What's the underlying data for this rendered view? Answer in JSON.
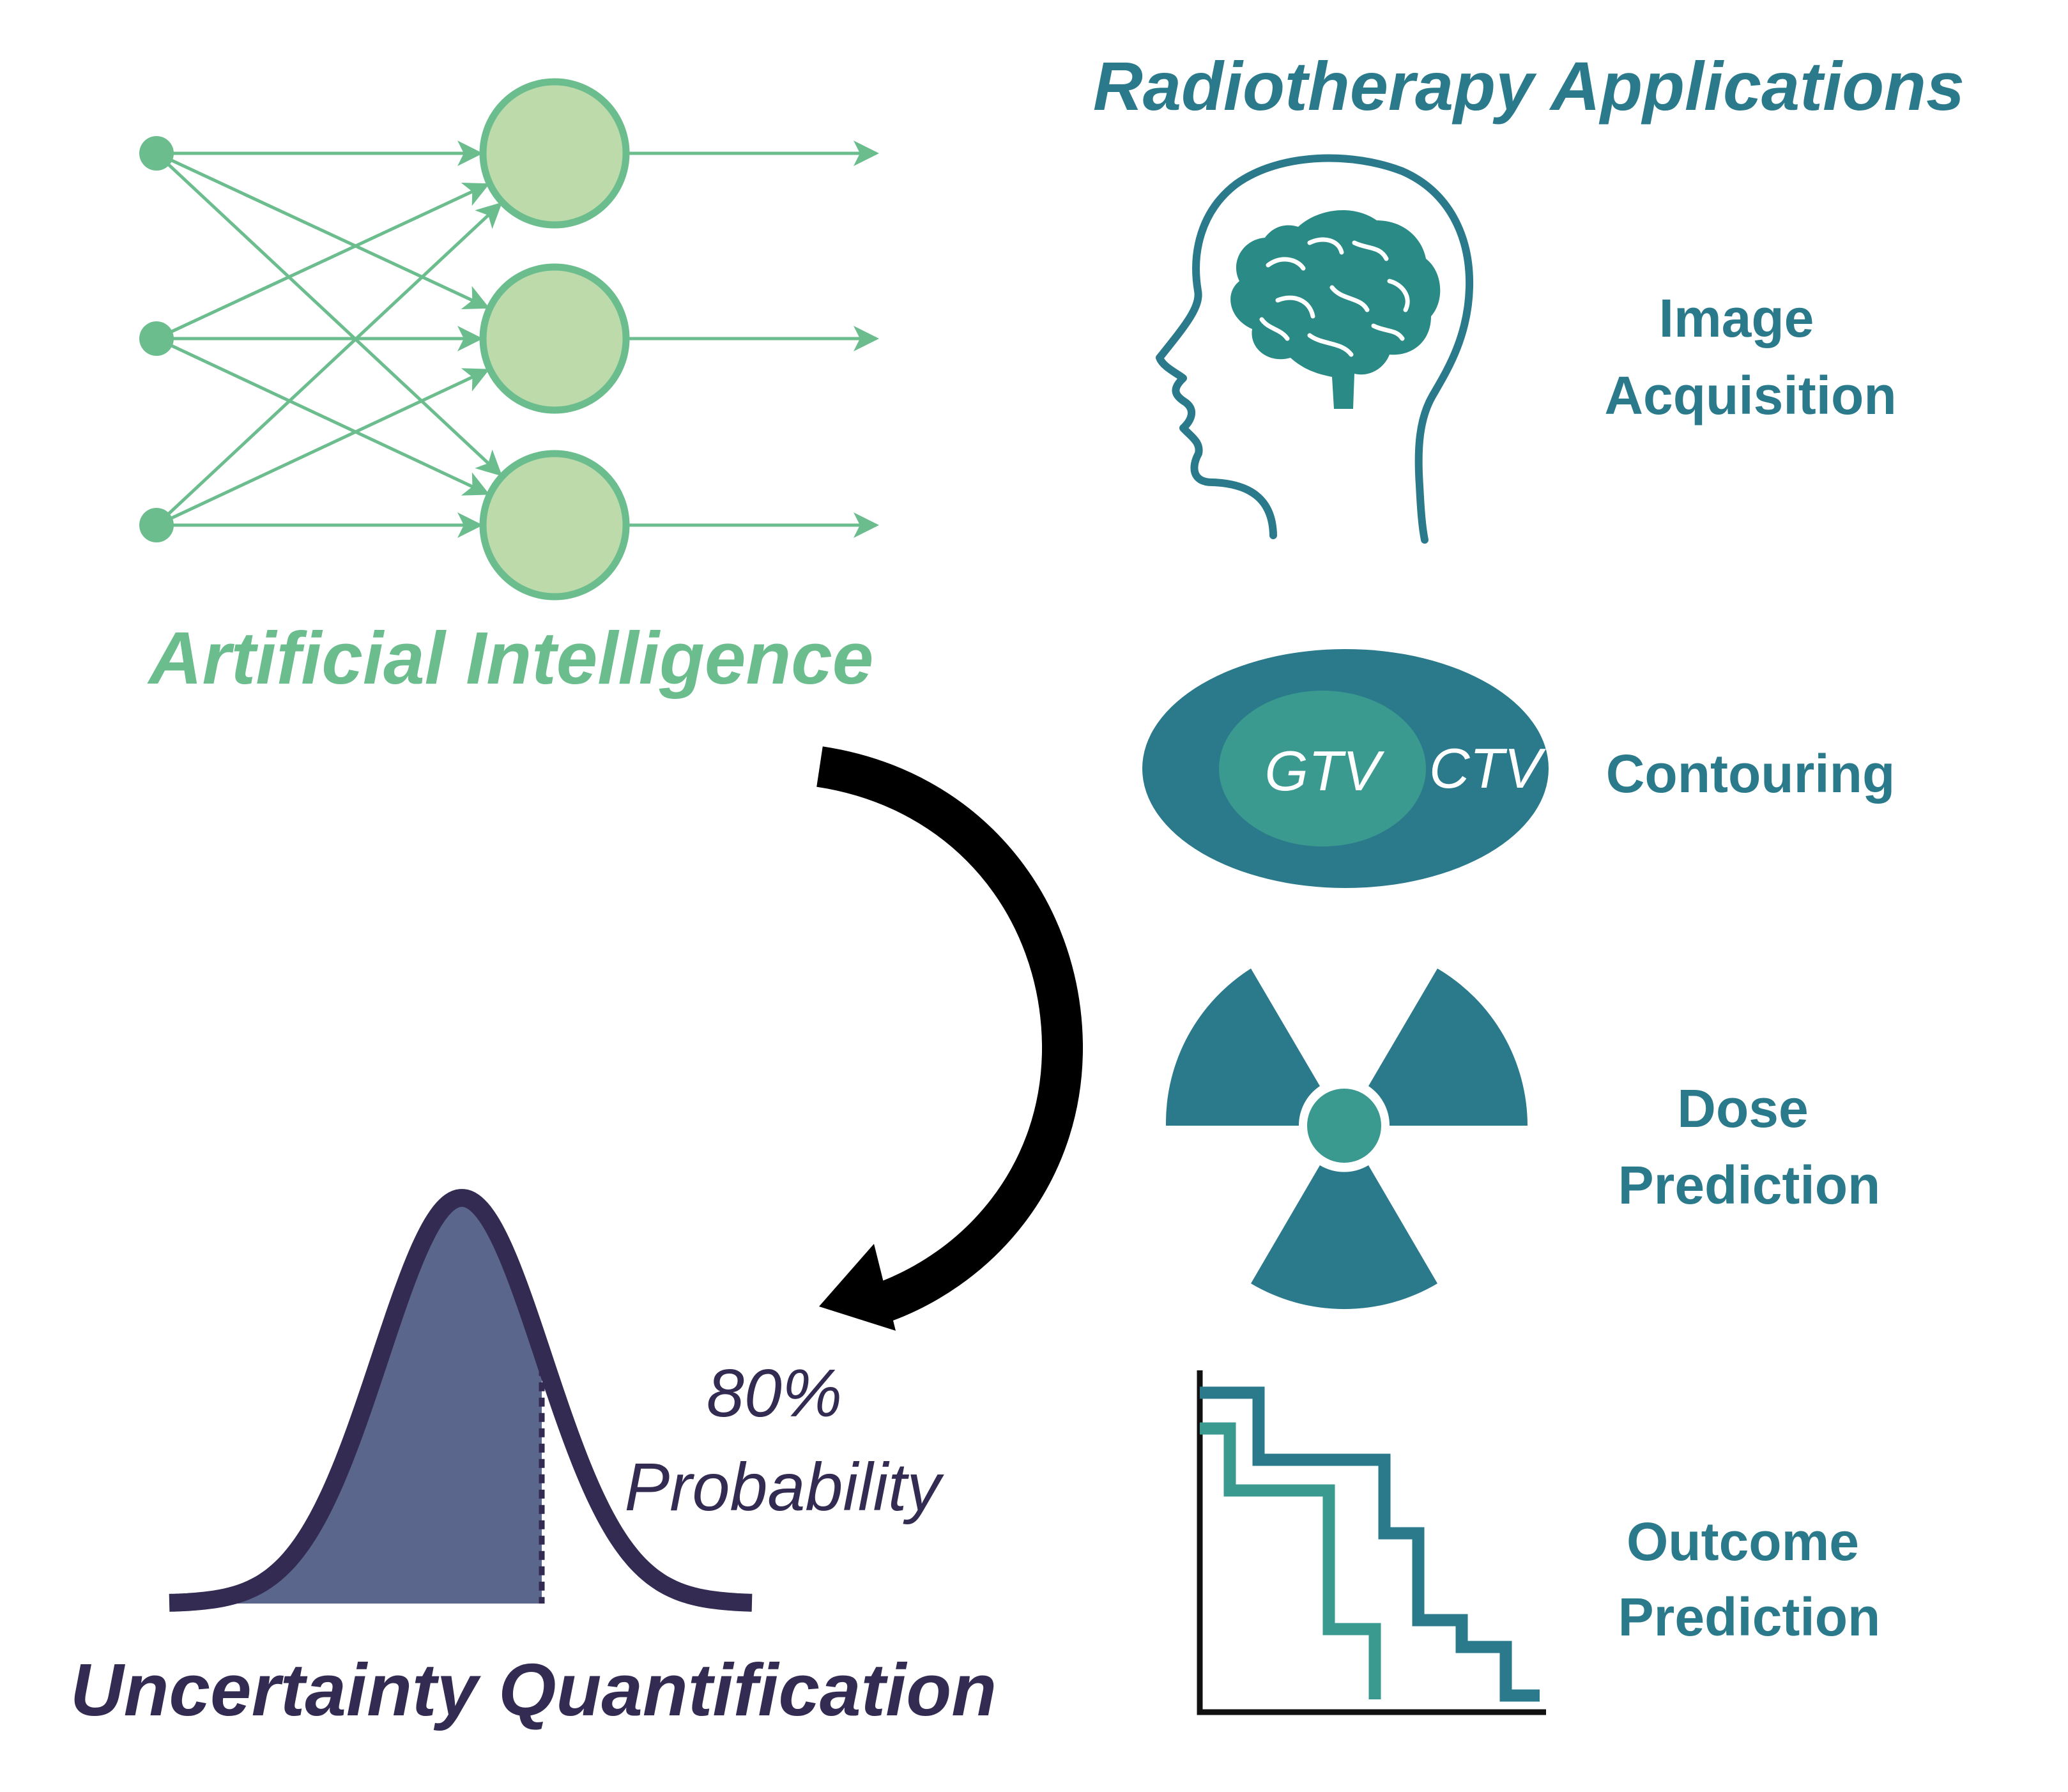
{
  "colors": {
    "ai_green": "#6bbd8e",
    "ai_node_fill": "#bcdaaa",
    "teal_dark": "#2a7a8c",
    "teal_mid": "#3a9a8f",
    "navy": "#332b52",
    "bell_fill": "#5a668b",
    "arrow_black": "#000000",
    "white": "#ffffff"
  },
  "artificial_intelligence": {
    "title": "Artificial Intelligence"
  },
  "radiotherapy": {
    "title": "Radiotherapy Applications",
    "image_acquisition": {
      "line1": "Image",
      "line2": "Acquisition",
      "icon": "head-brain-icon"
    },
    "contouring": {
      "label": "Contouring",
      "gtv": "GTV",
      "ctv": "CTV",
      "icon": "contour-ellipse-icon"
    },
    "dose_prediction": {
      "line1": "Dose",
      "line2": "Prediction",
      "icon": "radiation-trefoil-icon"
    },
    "outcome_prediction": {
      "line1": "Outcome",
      "line2": "Prediction",
      "icon": "survival-curve-icon"
    }
  },
  "uncertainty": {
    "title": "Uncertainty Quantification",
    "probability_value": "80%",
    "probability_label": "Probability",
    "icon": "bell-curve-icon"
  },
  "flow_arrow": {
    "icon": "curved-arrow-icon"
  }
}
